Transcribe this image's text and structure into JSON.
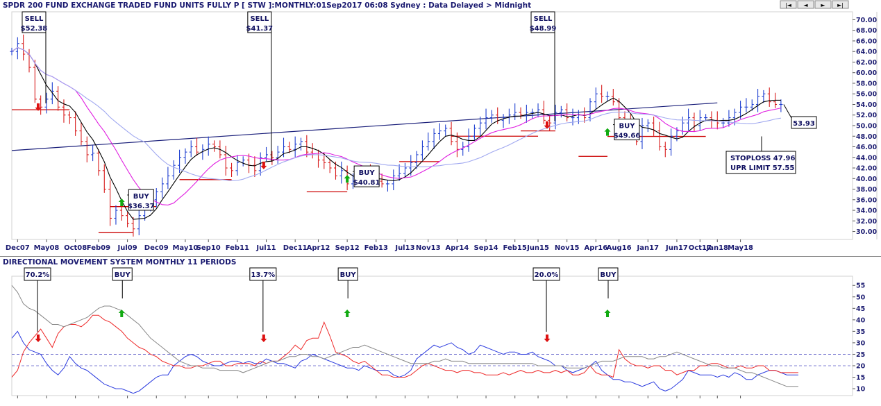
{
  "header": {
    "title": "SPDR 200 FUND EXCHANGE TRADED FUND UNITS FULLY P [ STW ]:MONTHLY:01Sep2017 06:08 Sydney : Data Delayed > Midnight",
    "nav_buttons": [
      "|◄",
      "◄",
      "►",
      "►|"
    ]
  },
  "lower_panel": {
    "title": "DIRECTIONAL MOVEMENT SYSTEM MONTHLY 11 PERIODS"
  },
  "colors": {
    "up_bar": "#1e3fd0",
    "down_bar": "#d81e1e",
    "ma_fast": "#000000",
    "ma_mid": "#e01ee0",
    "ma_slow": "#a0a8f0",
    "trendline": "#1a1f7a",
    "support": "#cc0000",
    "di_plus": "#2a3adf",
    "di_minus": "#ee2a2a",
    "adx": "#888888"
  },
  "chart_data": [
    {
      "type": "candlestick",
      "title": "SPDR 200 FUND EXCHANGE TRADED FUND UNITS FULLY P [ STW ]:MONTHLY:01Sep2017 06:08 Sydney : Data Delayed > Midnight",
      "x_tick_labels": [
        "Dec07",
        "May08",
        "Oct08",
        "Feb09",
        "Jul09",
        "Dec09",
        "May10",
        "Sep10",
        "Feb11",
        "Jul11",
        "Dec11",
        "Apr12",
        "Sep12",
        "Feb13",
        "Jul13",
        "Nov13",
        "Apr14",
        "Sep14",
        "Feb15",
        "Jun15",
        "Nov15",
        "Apr16",
        "Aug16",
        "Jan17",
        "Jun17",
        "Oct17",
        "Jan18",
        "May18"
      ],
      "y_tick_labels": [
        "70.00",
        "68.00",
        "66.00",
        "64.00",
        "62.00",
        "60.00",
        "58.00",
        "56.00",
        "54.00",
        "52.00",
        "50.00",
        "48.00",
        "46.00",
        "44.00",
        "42.00",
        "40.00",
        "38.00",
        "36.00",
        "34.00",
        "32.00",
        "30.00"
      ],
      "ylim": [
        28.5,
        71.5
      ],
      "x_start": "2007-11",
      "closes": [
        64.0,
        65.5,
        63.5,
        61.0,
        55.0,
        53.5,
        55.0,
        56.5,
        53.5,
        52.0,
        51.5,
        49.0,
        47.0,
        44.5,
        44.8,
        41.5,
        38.0,
        32.5,
        34.0,
        33.0,
        31.5,
        30.5,
        33.0,
        34.5,
        36.0,
        37.5,
        39.0,
        40.5,
        42.5,
        44.0,
        45.0,
        46.0,
        45.0,
        45.5,
        46.5,
        46.0,
        44.5,
        42.0,
        41.5,
        43.0,
        43.5,
        42.5,
        41.5,
        44.0,
        44.5,
        44.0,
        45.0,
        46.0,
        45.5,
        46.5,
        47.0,
        45.0,
        44.5,
        43.5,
        43.0,
        42.0,
        40.5,
        41.5,
        39.0,
        39.5,
        40.0,
        41.0,
        40.0,
        39.5,
        39.0,
        39.0,
        40.5,
        41.0,
        42.0,
        43.0,
        44.5,
        46.0,
        47.0,
        48.5,
        49.0,
        49.5,
        47.0,
        45.5,
        46.0,
        48.0,
        49.5,
        50.5,
        51.5,
        52.0,
        51.0,
        51.5,
        52.0,
        52.5,
        52.0,
        52.5,
        52.5,
        53.0,
        51.0,
        50.5,
        52.5,
        53.0,
        51.5,
        51.5,
        52.0,
        51.5,
        54.5,
        56.0,
        55.5,
        55.5,
        54.5,
        51.5,
        50.5,
        49.5,
        47.0,
        50.0,
        50.5,
        49.0,
        46.0,
        45.5,
        48.0,
        49.0,
        50.5,
        51.5,
        50.0,
        51.5,
        51.5,
        51.0,
        50.5,
        50.5,
        51.5,
        52.5,
        53.5,
        53.5,
        54.0,
        55.5,
        56.0,
        54.5,
        54.0,
        54.0
      ],
      "series": [
        {
          "name": "",
          "type": "sma",
          "period": 5
        },
        {
          "name": "",
          "type": "sma",
          "period": 12
        },
        {
          "name": "",
          "type": "sma",
          "period": 24
        }
      ],
      "trendline": [
        {
          "date": "2007-11",
          "value": 45.3
        },
        {
          "date": "2018-01",
          "value": 54.3
        }
      ],
      "support_lines": [
        {
          "from": "2007-11",
          "to": "2008-09",
          "value": 53.0
        },
        {
          "from": "2009-02",
          "to": "2009-08",
          "value": 29.8
        },
        {
          "from": "2009-04",
          "to": "2009-12",
          "value": 34.7
        },
        {
          "from": "2010-04",
          "to": "2011-01",
          "value": 39.8
        },
        {
          "from": "2012-02",
          "to": "2012-09",
          "value": 37.5
        },
        {
          "from": "2013-06",
          "to": "2014-01",
          "value": 43.2
        },
        {
          "from": "2014-03",
          "to": "2015-06",
          "value": 48.0
        },
        {
          "from": "2015-03",
          "to": "2015-09",
          "value": 49.0
        },
        {
          "from": "2016-01",
          "to": "2016-06",
          "value": 44.2
        },
        {
          "from": "2016-06",
          "to": "2017-11",
          "value": 47.96
        }
      ],
      "signals": [
        {
          "label": "SELL",
          "price_label": "$52.38",
          "date": "2008-05",
          "value": 52.38,
          "arrow": "down"
        },
        {
          "label": "BUY",
          "price_label": "$36.37",
          "date": "2009-06",
          "value": 36.37,
          "arrow": "up"
        },
        {
          "label": "SELL",
          "price_label": "$41.37",
          "date": "2011-08",
          "value": 41.37,
          "arrow": "down"
        },
        {
          "label": "BUY",
          "price_label": "$40.81",
          "date": "2012-09",
          "value": 40.81,
          "arrow": "up"
        },
        {
          "label": "SELL",
          "price_label": "$48.99",
          "date": "2015-09",
          "value": 48.99,
          "arrow": "down"
        },
        {
          "label": "BUY",
          "price_label": "$49.66",
          "date": "2016-06",
          "value": 49.66,
          "arrow": "up"
        }
      ],
      "last_price_label": "53.93",
      "stoploss_label": "STOPLOSS 47.96",
      "upr_limit_label": "UPR LIMIT 57.55"
    },
    {
      "type": "line",
      "title": "DIRECTIONAL MOVEMENT SYSTEM MONTHLY 11 PERIODS",
      "y_tick_labels": [
        "55",
        "50",
        "45",
        "40",
        "35",
        "30",
        "25",
        "20",
        "15",
        "10"
      ],
      "ylim": [
        7,
        59
      ],
      "reference_lines": [
        25,
        20
      ],
      "x_start": "2007-11",
      "series": [
        {
          "name": "",
          "values": [
            32,
            35,
            30,
            27,
            26,
            25,
            21,
            18,
            16,
            19,
            24,
            21,
            19,
            18,
            16,
            14,
            12,
            11,
            10,
            10,
            9,
            8,
            9,
            11,
            13,
            15,
            16,
            16,
            20,
            22,
            24,
            25,
            24,
            22,
            21,
            20,
            20,
            21,
            22,
            22,
            21,
            22,
            21,
            21,
            23,
            22,
            21,
            21,
            20,
            19,
            22,
            23,
            25,
            24,
            23,
            22,
            21,
            20,
            19,
            19,
            18,
            20,
            19,
            18,
            18,
            18,
            16,
            15,
            16,
            18,
            23,
            25,
            27,
            29,
            28,
            29,
            30,
            28,
            27,
            25,
            26,
            29,
            28,
            27,
            26,
            25,
            26,
            26,
            25,
            25,
            26,
            24,
            23,
            22,
            20,
            20,
            18,
            17,
            18,
            19,
            20,
            22,
            18,
            16,
            14,
            14,
            13,
            13,
            12,
            11,
            12,
            13,
            10,
            9,
            10,
            12,
            14,
            18,
            17,
            16,
            16,
            16,
            15,
            16,
            15,
            17,
            16,
            14,
            14,
            16,
            17,
            18,
            18,
            17,
            16,
            16,
            16
          ]
        },
        {
          "name": "",
          "values": [
            15,
            18,
            26,
            30,
            33,
            36,
            32,
            28,
            34,
            37,
            38,
            38,
            37,
            39,
            42,
            42,
            40,
            39,
            37,
            35,
            32,
            30,
            28,
            27,
            25,
            24,
            22,
            21,
            20,
            20,
            19,
            19,
            20,
            20,
            21,
            22,
            22,
            20,
            20,
            21,
            21,
            21,
            20,
            22,
            21,
            22,
            22,
            24,
            26,
            29,
            27,
            31,
            32,
            32,
            39,
            33,
            26,
            25,
            24,
            22,
            21,
            22,
            20,
            18,
            16,
            16,
            15,
            15,
            15,
            16,
            18,
            20,
            21,
            20,
            19,
            18,
            18,
            17,
            18,
            18,
            17,
            17,
            16,
            16,
            16,
            17,
            16,
            17,
            18,
            17,
            17,
            18,
            17,
            17,
            18,
            17,
            18,
            16,
            16,
            17,
            20,
            17,
            16,
            16,
            15,
            27,
            23,
            21,
            20,
            20,
            19,
            20,
            20,
            18,
            18,
            16,
            17,
            18,
            18,
            20,
            20,
            21,
            21,
            20,
            19,
            19,
            20,
            19,
            19,
            20,
            20,
            18,
            18,
            17,
            17,
            17,
            17
          ]
        },
        {
          "name": "",
          "values": [
            55,
            52,
            47,
            45,
            44,
            42,
            40,
            38,
            38,
            37,
            38,
            39,
            40,
            41,
            43,
            45,
            46,
            46,
            45,
            44,
            42,
            40,
            38,
            35,
            32,
            30,
            28,
            26,
            24,
            22,
            21,
            20,
            20,
            19,
            19,
            19,
            18,
            18,
            18,
            18,
            17,
            18,
            19,
            20,
            21,
            22,
            22,
            23,
            24,
            24,
            25,
            25,
            24,
            24,
            23,
            24,
            25,
            26,
            27,
            28,
            28,
            29,
            28,
            27,
            26,
            25,
            24,
            23,
            22,
            21,
            21,
            21,
            21,
            22,
            22,
            23,
            22,
            22,
            22,
            21,
            21,
            21,
            21,
            21,
            21,
            21,
            21,
            21,
            21,
            21,
            21,
            20,
            20,
            20,
            20,
            20,
            19,
            19,
            19,
            19,
            20,
            21,
            22,
            22,
            22,
            23,
            24,
            24,
            24,
            24,
            23,
            23,
            24,
            24,
            25,
            26,
            25,
            24,
            23,
            22,
            21,
            20,
            20,
            19,
            19,
            19,
            18,
            17,
            17,
            16,
            15,
            14,
            13,
            12,
            11,
            11,
            11
          ]
        }
      ],
      "signals": [
        {
          "label": "70.2%",
          "date": "2008-05",
          "arrow": "down"
        },
        {
          "label": "BUY",
          "date": "2009-06",
          "arrow": "up"
        },
        {
          "label": "13.7%",
          "date": "2011-08",
          "arrow": "down"
        },
        {
          "label": "BUY",
          "date": "2012-09",
          "arrow": "up"
        },
        {
          "label": "20.0%",
          "date": "2015-09",
          "arrow": "down"
        },
        {
          "label": "BUY",
          "date": "2016-06",
          "arrow": "up"
        }
      ]
    }
  ]
}
